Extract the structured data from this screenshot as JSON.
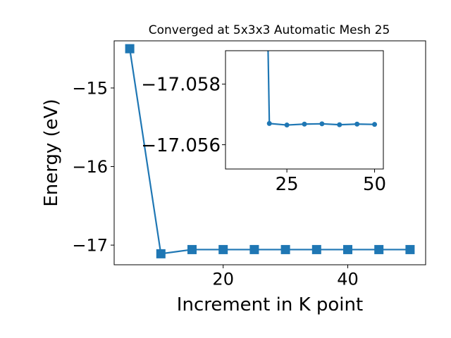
{
  "chart_data": [
    {
      "type": "line",
      "title": "Converged at 5x3x3 Automatic Mesh 25",
      "xlabel": "Increment in K point",
      "ylabel": "Energy (eV)",
      "xlim": [
        2.5,
        52.5
      ],
      "ylim": [
        -17.25,
        -14.4
      ],
      "xticks": [
        20,
        40
      ],
      "xtick_labels": [
        "20",
        "40"
      ],
      "yticks": [
        -15,
        -16,
        -17
      ],
      "ytick_labels": [
        "−15",
        "−16",
        "−17"
      ],
      "marker": "square",
      "color": "#1f77b4",
      "series": [
        {
          "x": [
            5,
            10,
            15,
            20,
            25,
            30,
            35,
            40,
            45,
            50
          ],
          "y": [
            -14.5,
            -17.11,
            -17.0567,
            -17.0567,
            -17.0566,
            -17.0567,
            -17.0567,
            -17.0567,
            -17.0567,
            -17.0567
          ]
        }
      ]
    },
    {
      "type": "line",
      "role": "inset",
      "xlim": [
        7.5,
        52.5
      ],
      "ylim": [
        -17.0552,
        -17.0591
      ],
      "xticks": [
        25,
        50
      ],
      "xtick_labels": [
        "25",
        "50"
      ],
      "yticks": [
        -17.058,
        -17.056
      ],
      "ytick_labels": [
        "−17.058",
        "−17.056"
      ],
      "marker": "circle",
      "color": "#1f77b4",
      "series": [
        {
          "x": [
            20,
            25,
            30,
            35,
            40,
            45,
            50
          ],
          "y": [
            -17.0567,
            -17.05665,
            -17.05668,
            -17.05669,
            -17.05666,
            -17.05668,
            -17.05667
          ]
        }
      ]
    }
  ]
}
